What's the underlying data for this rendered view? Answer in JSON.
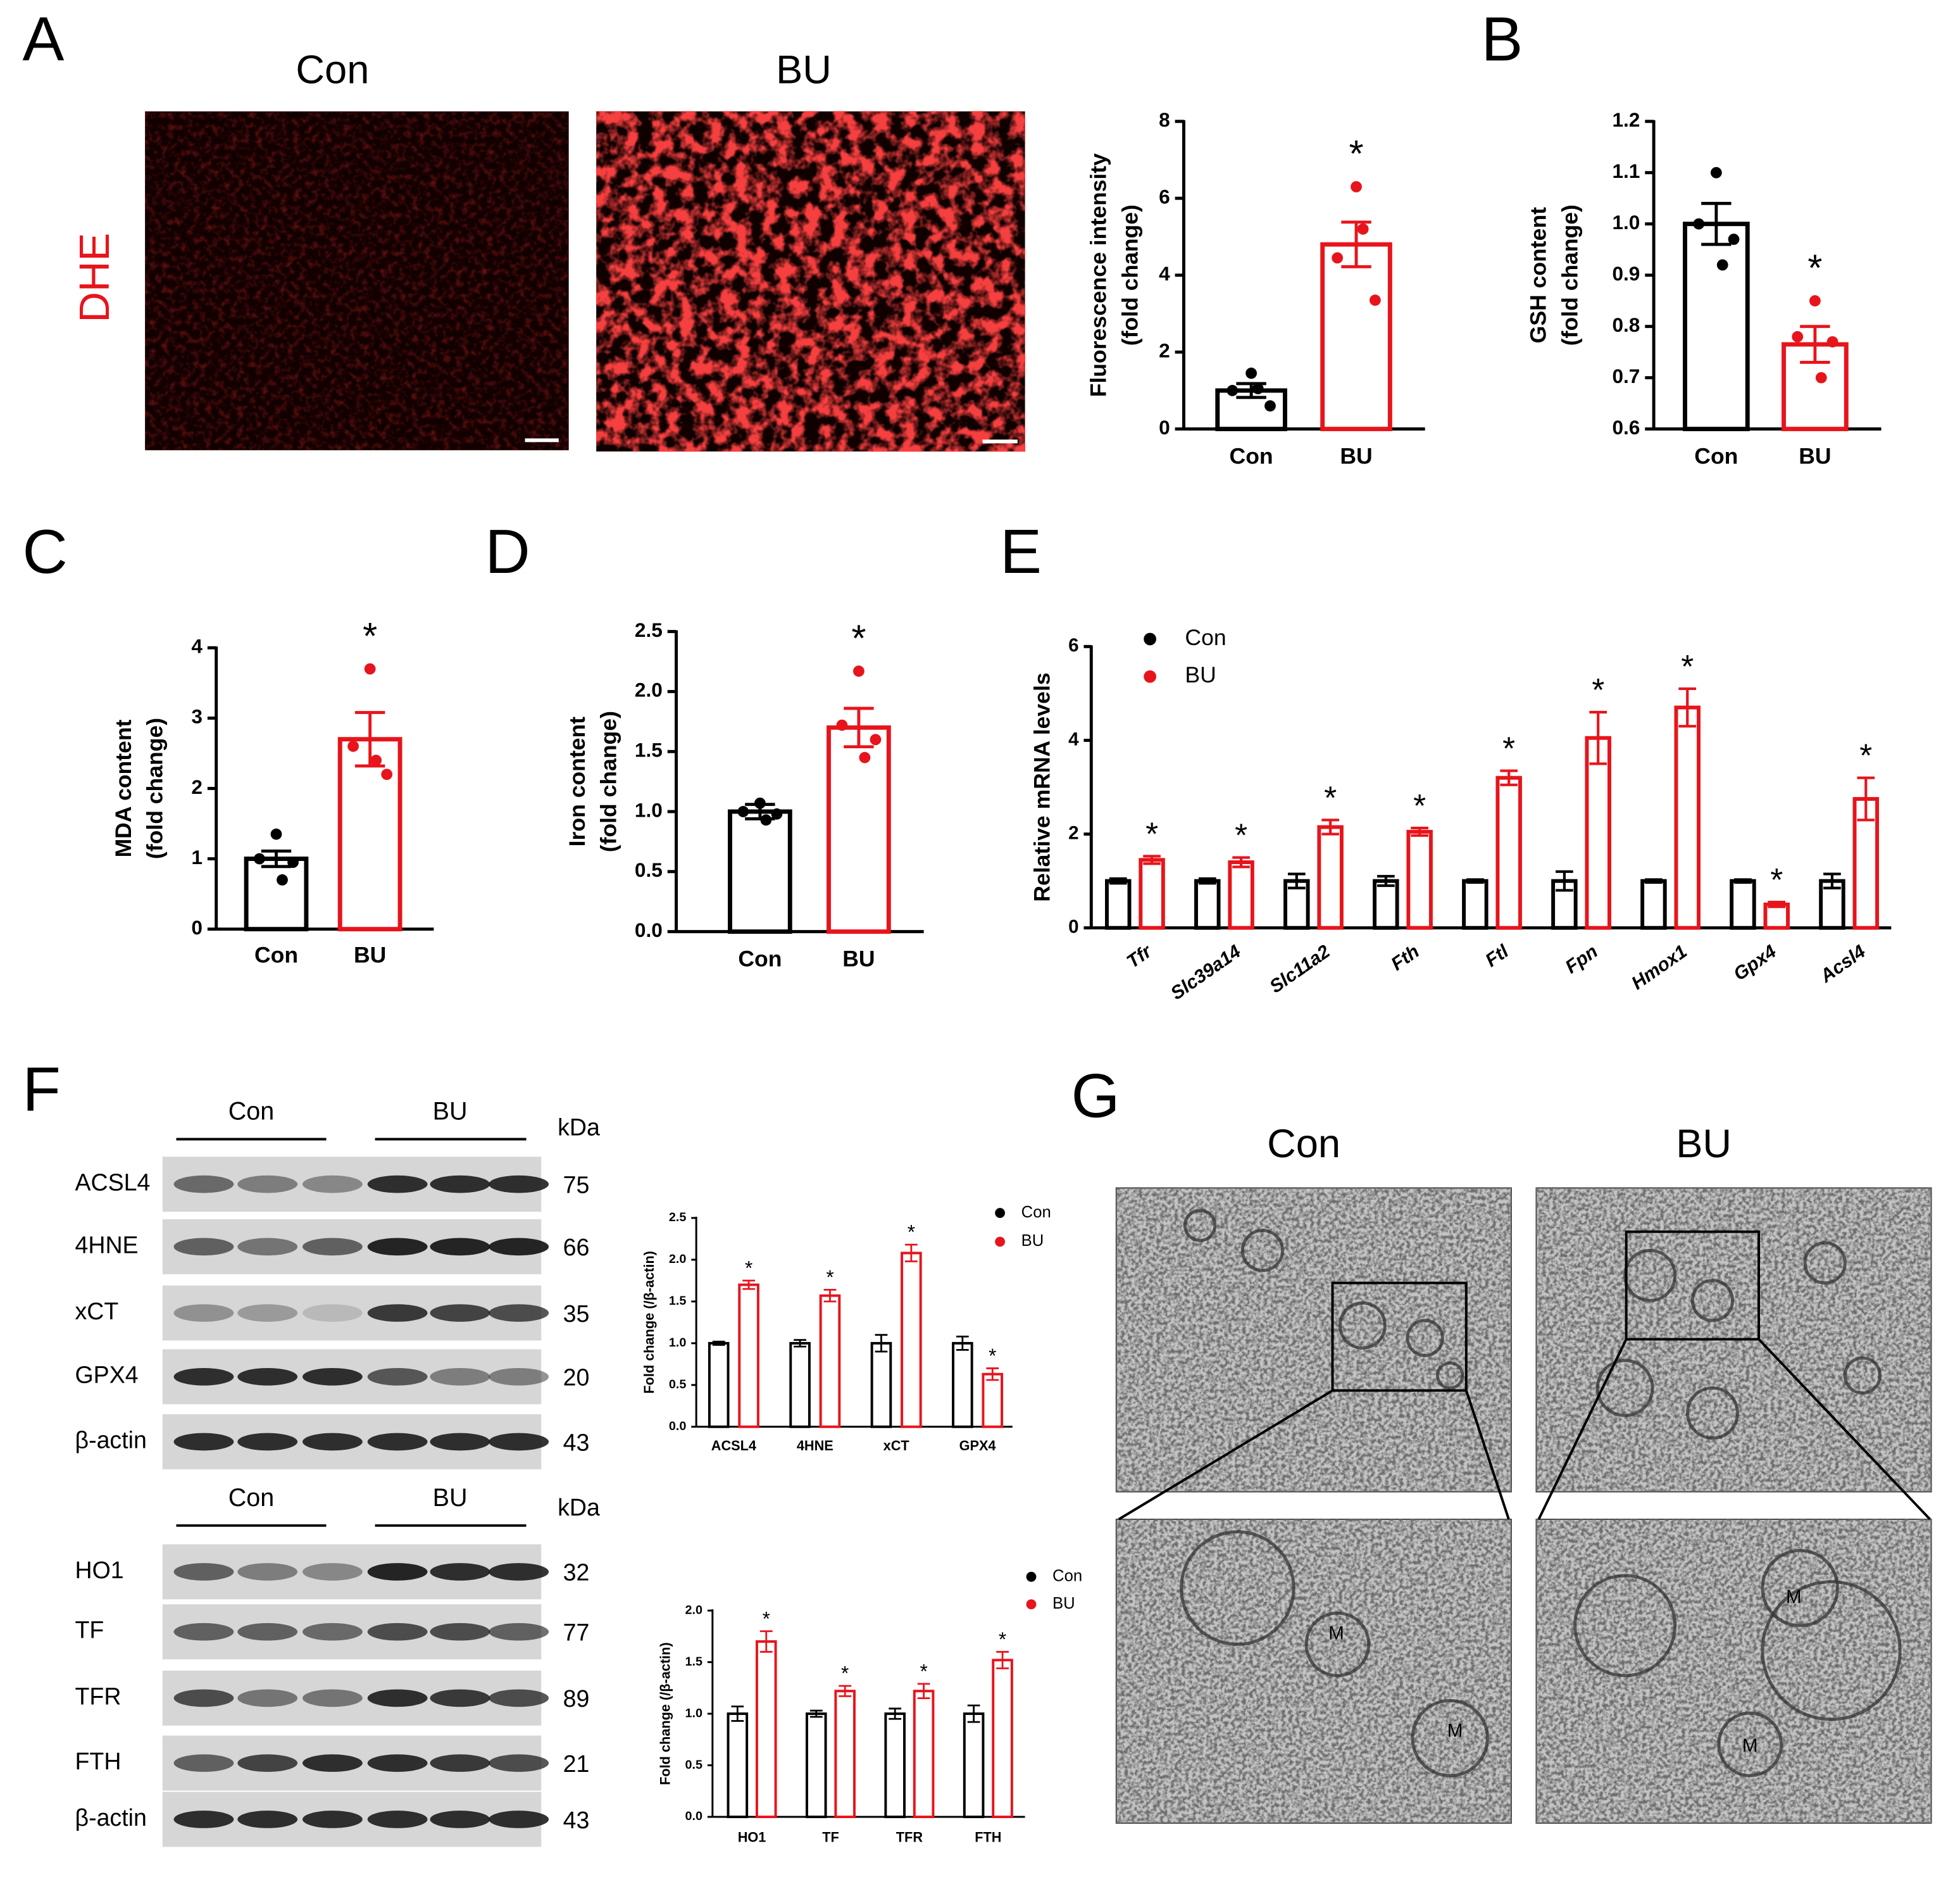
{
  "panels": [
    "A",
    "B",
    "C",
    "D",
    "E",
    "F",
    "G"
  ],
  "dhe": {
    "groups": [
      "Con",
      "BU"
    ],
    "stain": "DHE"
  },
  "blots": [
    {
      "groups": [
        "Con",
        "BU"
      ],
      "unit": "kDa",
      "rows": [
        {
          "protein": "ACSL4",
          "kda": 75
        },
        {
          "protein": "4HNE",
          "kda": 66
        },
        {
          "protein": "xCT",
          "kda": 35
        },
        {
          "protein": "GPX4",
          "kda": 20
        },
        {
          "protein": "β-actin",
          "kda": 43
        }
      ]
    },
    {
      "groups": [
        "Con",
        "BU"
      ],
      "unit": "kDa",
      "rows": [
        {
          "protein": "HO1",
          "kda": 32
        },
        {
          "protein": "TF",
          "kda": 77
        },
        {
          "protein": "TFR",
          "kda": 89
        },
        {
          "protein": "FTH",
          "kda": 21
        },
        {
          "protein": "β-actin",
          "kda": 43
        }
      ]
    }
  ],
  "tem": {
    "groups": [
      "Con",
      "BU"
    ],
    "mito_labels": [
      "M",
      "M",
      "M",
      "M"
    ]
  },
  "chart_data": [
    {
      "type": "bar",
      "categories": [
        "Con",
        "BU"
      ],
      "colors": [
        "#000000",
        "#e8141b"
      ],
      "values": [
        1.0,
        4.8
      ],
      "errors": [
        0.18,
        0.58
      ],
      "points": [
        [
          1.45,
          1.0,
          0.6,
          1.05
        ],
        [
          6.3,
          4.45,
          3.35,
          5.2
        ]
      ],
      "significance": [
        null,
        "*"
      ],
      "ylabel": [
        "Fluorescence intensity",
        "(fold change)"
      ],
      "ylim": [
        0,
        8
      ],
      "yticks": [
        0,
        2,
        4,
        6,
        8
      ]
    },
    {
      "type": "bar",
      "categories": [
        "Con",
        "BU"
      ],
      "colors": [
        "#000000",
        "#e8141b"
      ],
      "values": [
        1.0,
        0.765
      ],
      "errors": [
        0.04,
        0.035
      ],
      "points": [
        [
          1.1,
          1.0,
          0.97,
          0.92
        ],
        [
          0.85,
          0.78,
          0.77,
          0.7
        ]
      ],
      "significance": [
        null,
        "*"
      ],
      "ylabel": [
        "GSH content",
        "(fold change)"
      ],
      "ylim": [
        0.6,
        1.2
      ],
      "yticks": [
        0.6,
        0.7,
        0.8,
        0.9,
        {
          "value": 1,
          "label": "1.0"
        },
        1.1,
        1.2
      ]
    },
    {
      "type": "bar",
      "categories": [
        "Con",
        "BU"
      ],
      "colors": [
        "#000000",
        "#e8141b"
      ],
      "values": [
        1.0,
        2.7
      ],
      "errors": [
        0.11,
        0.38
      ],
      "points": [
        [
          1.35,
          1.0,
          0.95,
          0.7
        ],
        [
          3.7,
          2.6,
          2.2,
          2.4
        ]
      ],
      "significance": [
        null,
        "*"
      ],
      "ylabel": [
        "MDA content",
        "(fold change)"
      ],
      "ylim": [
        0,
        4
      ],
      "yticks": [
        0,
        1,
        2,
        3,
        4
      ]
    },
    {
      "type": "bar",
      "categories": [
        "Con",
        "BU"
      ],
      "colors": [
        "#000000",
        "#e8141b"
      ],
      "values": [
        1.0,
        1.7
      ],
      "errors": [
        0.06,
        0.16
      ],
      "points": [
        [
          1.07,
          1.0,
          0.98,
          0.93
        ],
        [
          2.17,
          1.72,
          1.6,
          1.45
        ]
      ],
      "significance": [
        null,
        "*"
      ],
      "ylabel": [
        "Iron content",
        "(fold change)"
      ],
      "ylim": [
        0,
        2.5
      ],
      "yticks": [
        {
          "value": 0,
          "label": "0.0"
        },
        0.5,
        {
          "value": 1,
          "label": "1.0"
        },
        1.5,
        {
          "value": 2,
          "label": "2.0"
        },
        2.5
      ]
    },
    {
      "type": "grouped-bar",
      "categories": [
        "Tfr",
        "Slc39a14",
        "Slc11a2",
        "Fth",
        "Ftl",
        "Fpn",
        "Hmox1",
        "Gpx4",
        "Acsl4"
      ],
      "series": [
        {
          "name": "Con",
          "color": "#000000",
          "values": [
            1,
            1,
            1,
            1,
            1,
            1,
            1,
            1,
            1
          ],
          "errors": [
            0.05,
            0.05,
            0.15,
            0.1,
            0.03,
            0.2,
            0.03,
            0.03,
            0.15
          ]
        },
        {
          "name": "BU",
          "color": "#e8141b",
          "values": [
            1.45,
            1.4,
            2.15,
            2.05,
            3.2,
            4.05,
            4.7,
            0.5,
            2.75
          ],
          "errors": [
            0.08,
            0.1,
            0.15,
            0.08,
            0.15,
            0.55,
            0.4,
            0.05,
            0.45
          ],
          "significance": [
            "*",
            "*",
            "*",
            "*",
            "*",
            "*",
            "*",
            "*",
            "*"
          ]
        }
      ],
      "ylabel": [
        "Relative mRNA levels"
      ],
      "ylim": [
        0,
        6
      ],
      "yticks": [
        0,
        2,
        4,
        6
      ],
      "legend": "top-left"
    },
    {
      "type": "grouped-bar",
      "categories": [
        "ACSL4",
        "4HNE",
        "xCT",
        "GPX4"
      ],
      "series": [
        {
          "name": "Con",
          "color": "#000000",
          "values": [
            1,
            1,
            1,
            1
          ],
          "errors": [
            0.02,
            0.04,
            0.1,
            0.08
          ]
        },
        {
          "name": "BU",
          "color": "#e8141b",
          "values": [
            1.7,
            1.57,
            2.08,
            0.63
          ],
          "errors": [
            0.05,
            0.07,
            0.1,
            0.07
          ],
          "significance": [
            "*",
            "*",
            "*",
            "*"
          ]
        }
      ],
      "ylabel": [
        "Fold change (/β-actin)"
      ],
      "ylim": [
        0,
        2.5
      ],
      "yticks": [
        {
          "value": 0,
          "label": "0.0"
        },
        0.5,
        {
          "value": 1,
          "label": "1.0"
        },
        1.5,
        {
          "value": 2,
          "label": "2.0"
        },
        2.5
      ],
      "legend": "top-right"
    },
    {
      "type": "grouped-bar",
      "categories": [
        "HO1",
        "TF",
        "TFR",
        "FTH"
      ],
      "series": [
        {
          "name": "Con",
          "color": "#000000",
          "values": [
            1,
            1,
            1,
            1
          ],
          "errors": [
            0.07,
            0.03,
            0.05,
            0.08
          ]
        },
        {
          "name": "BU",
          "color": "#e8141b",
          "values": [
            1.7,
            1.22,
            1.22,
            1.52
          ],
          "errors": [
            0.1,
            0.05,
            0.07,
            0.08
          ],
          "significance": [
            "*",
            "*",
            "*",
            "*"
          ]
        }
      ],
      "ylabel": [
        "Fold change (/β-actin)"
      ],
      "ylim": [
        0,
        2
      ],
      "yticks": [
        {
          "value": 0,
          "label": "0.0"
        },
        0.5,
        {
          "value": 1,
          "label": "1.0"
        },
        1.5,
        {
          "value": 2,
          "label": "2.0"
        }
      ],
      "legend": "top-right"
    }
  ]
}
